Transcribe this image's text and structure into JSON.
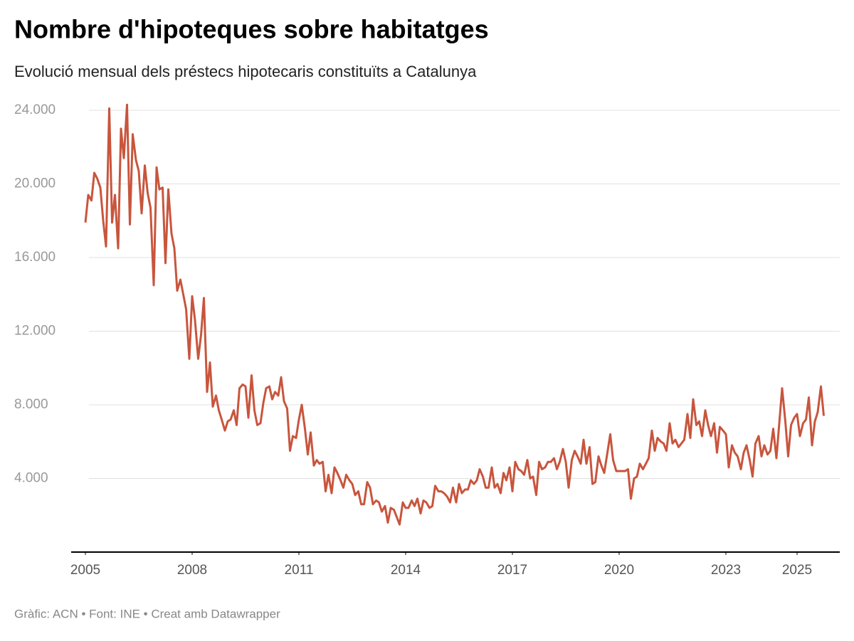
{
  "chart_data": {
    "type": "line",
    "title": "Nombre d'hipoteques sobre habitatges",
    "subtitle": "Evolució mensual dels préstecs hipotecaris constituïts a Catalunya",
    "source": "Gràfic: ACN • Font: INE • Creat amb Datawrapper",
    "color": "#c8553d",
    "grid": true,
    "xlim": [
      2004.6,
      2026.2
    ],
    "xticks": [
      2005,
      2008,
      2011,
      2014,
      2017,
      2020,
      2023,
      2025
    ],
    "ylim": [
      0,
      24000
    ],
    "yticks": [
      {
        "value": 4000,
        "label": "4.000"
      },
      {
        "value": 8000,
        "label": "8.000"
      },
      {
        "value": 12000,
        "label": "12.000"
      },
      {
        "value": 16000,
        "label": "16.000"
      },
      {
        "value": 20000,
        "label": "20.000"
      },
      {
        "value": 24000,
        "label": "24.000"
      }
    ],
    "x": [
      2005,
      2005.08,
      2005.17,
      2005.25,
      2005.33,
      2005.42,
      2005.5,
      2005.58,
      2005.67,
      2005.75,
      2005.83,
      2005.92,
      2006,
      2006.08,
      2006.17,
      2006.25,
      2006.33,
      2006.42,
      2006.5,
      2006.58,
      2006.67,
      2006.75,
      2006.83,
      2006.92,
      2007,
      2007.08,
      2007.17,
      2007.25,
      2007.33,
      2007.42,
      2007.5,
      2007.58,
      2007.67,
      2007.75,
      2007.83,
      2007.92,
      2008,
      2008.08,
      2008.17,
      2008.25,
      2008.33,
      2008.42,
      2008.5,
      2008.58,
      2008.67,
      2008.75,
      2008.83,
      2008.92,
      2009,
      2009.08,
      2009.17,
      2009.25,
      2009.33,
      2009.42,
      2009.5,
      2009.58,
      2009.67,
      2009.75,
      2009.83,
      2009.92,
      2010,
      2010.08,
      2010.17,
      2010.25,
      2010.33,
      2010.42,
      2010.5,
      2010.58,
      2010.67,
      2010.75,
      2010.83,
      2010.92,
      2011,
      2011.08,
      2011.17,
      2011.25,
      2011.33,
      2011.42,
      2011.5,
      2011.58,
      2011.67,
      2011.75,
      2011.83,
      2011.92,
      2012,
      2012.08,
      2012.17,
      2012.25,
      2012.33,
      2012.42,
      2012.5,
      2012.58,
      2012.67,
      2012.75,
      2012.83,
      2012.92,
      2013,
      2013.08,
      2013.17,
      2013.25,
      2013.33,
      2013.42,
      2013.5,
      2013.58,
      2013.67,
      2013.75,
      2013.83,
      2013.92,
      2014,
      2014.08,
      2014.17,
      2014.25,
      2014.33,
      2014.42,
      2014.5,
      2014.58,
      2014.67,
      2014.75,
      2014.83,
      2014.92,
      2015,
      2015.08,
      2015.17,
      2015.25,
      2015.33,
      2015.42,
      2015.5,
      2015.58,
      2015.67,
      2015.75,
      2015.83,
      2015.92,
      2016,
      2016.08,
      2016.17,
      2016.25,
      2016.33,
      2016.42,
      2016.5,
      2016.58,
      2016.67,
      2016.75,
      2016.83,
      2016.92,
      2017,
      2017.08,
      2017.17,
      2017.25,
      2017.33,
      2017.42,
      2017.5,
      2017.58,
      2017.67,
      2017.75,
      2017.83,
      2017.92,
      2018,
      2018.08,
      2018.17,
      2018.25,
      2018.33,
      2018.42,
      2018.5,
      2018.58,
      2018.67,
      2018.75,
      2018.83,
      2018.92,
      2019,
      2019.08,
      2019.17,
      2019.25,
      2019.33,
      2019.42,
      2019.5,
      2019.58,
      2019.67,
      2019.75,
      2019.83,
      2019.92,
      2020,
      2020.08,
      2020.17,
      2020.25,
      2020.33,
      2020.42,
      2020.5,
      2020.58,
      2020.67,
      2020.75,
      2020.83,
      2020.92,
      2021,
      2021.08,
      2021.17,
      2021.25,
      2021.33,
      2021.42,
      2021.5,
      2021.58,
      2021.67,
      2021.75,
      2021.83,
      2021.92,
      2022,
      2022.08,
      2022.17,
      2022.25,
      2022.33,
      2022.42,
      2022.5,
      2022.58,
      2022.67,
      2022.75,
      2022.83,
      2022.92,
      2023,
      2023.08,
      2023.17,
      2023.25,
      2023.33,
      2023.42,
      2023.5,
      2023.58,
      2023.67,
      2023.75,
      2023.83,
      2023.92,
      2024,
      2024.08,
      2024.17,
      2024.25,
      2024.33,
      2024.42,
      2024.5,
      2024.58,
      2024.67,
      2024.75,
      2024.83,
      2024.92,
      2025,
      2025.08,
      2025.17,
      2025.25,
      2025.33,
      2025.42,
      2025.5,
      2025.58,
      2025.67,
      2025.75
    ],
    "values": [
      17900,
      19400,
      19100,
      20600,
      20300,
      19800,
      18000,
      16600,
      24100,
      17900,
      19400,
      16500,
      23000,
      21400,
      24300,
      17800,
      22700,
      21300,
      20700,
      18400,
      21000,
      19500,
      18700,
      14500,
      20900,
      19700,
      19800,
      15700,
      19700,
      17300,
      16500,
      14200,
      14800,
      14000,
      13200,
      10500,
      13900,
      12600,
      10500,
      11800,
      13800,
      8700,
      10300,
      7900,
      8500,
      7700,
      7200,
      6600,
      7100,
      7200,
      7700,
      6900,
      8900,
      9100,
      9000,
      7300,
      9600,
      7700,
      6900,
      7000,
      8100,
      8900,
      9000,
      8300,
      8700,
      8500,
      9500,
      8200,
      7800,
      5500,
      6300,
      6200,
      7200,
      8000,
      6700,
      5300,
      6500,
      4700,
      5000,
      4800,
      4900,
      3300,
      4200,
      3200,
      4600,
      4300,
      3900,
      3500,
      4200,
      3900,
      3700,
      3100,
      3300,
      2600,
      2600,
      3800,
      3500,
      2600,
      2800,
      2700,
      2200,
      2500,
      1600,
      2400,
      2300,
      1900,
      1500,
      2700,
      2400,
      2400,
      2800,
      2500,
      2900,
      2100,
      2800,
      2700,
      2400,
      2500,
      3600,
      3300,
      3300,
      3200,
      3000,
      2700,
      3500,
      2700,
      3700,
      3200,
      3400,
      3400,
      3900,
      3700,
      3900,
      4500,
      4100,
      3500,
      3500,
      4600,
      3500,
      3700,
      3200,
      4300,
      3900,
      4600,
      3300,
      4900,
      4500,
      4400,
      4200,
      5000,
      4000,
      4100,
      3100,
      4900,
      4500,
      4600,
      4900,
      4900,
      5100,
      4500,
      4900,
      5600,
      4900,
      3500,
      5000,
      5500,
      5200,
      4800,
      6100,
      4800,
      5700,
      3700,
      3800,
      5200,
      4700,
      4300,
      5400,
      6400,
      5000,
      4400,
      4400,
      4400,
      4400,
      4500,
      2900,
      4000,
      4100,
      4800,
      4500,
      4800,
      5100,
      6600,
      5500,
      6200,
      6000,
      5900,
      5500,
      7000,
      5900,
      6100,
      5700,
      5900,
      6100,
      7500,
      6200,
      8300,
      6900,
      7100,
      6300,
      7700,
      6900,
      6300,
      7000,
      5400,
      6800,
      6600,
      6400,
      4600,
      5800,
      5400,
      5200,
      4500,
      5400,
      5800,
      5000,
      4100,
      5900,
      6300,
      5200,
      5800,
      5300,
      5500,
      6700,
      5100,
      7000,
      8900,
      7100,
      5200,
      6900,
      7300,
      7500,
      6300,
      7000,
      7200,
      8400,
      5800,
      7100,
      7600,
      9000,
      7400
    ]
  }
}
